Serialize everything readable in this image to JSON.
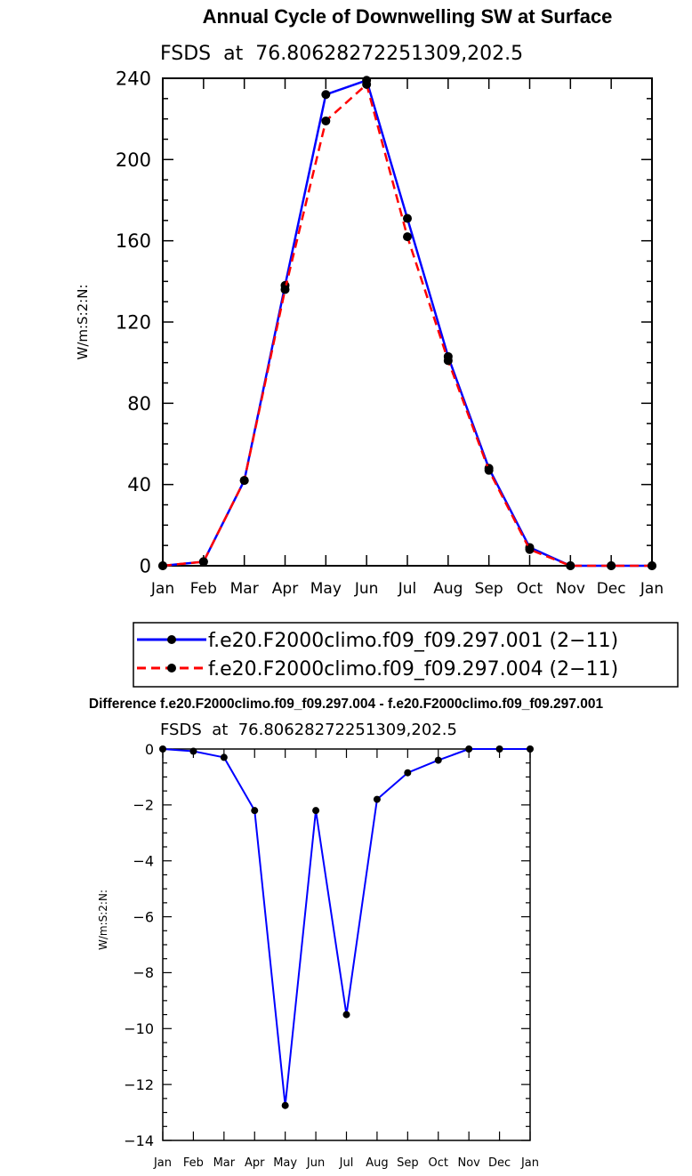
{
  "chart_data": [
    {
      "type": "line",
      "title": "Annual Cycle of Downwelling SW at Surface",
      "subtitle": "FSDS  at  76.80628272251309,202.5",
      "ylabel": "W/m:S:2:N:",
      "xlabel": "",
      "categories": [
        "Jan",
        "Feb",
        "Mar",
        "Apr",
        "May",
        "Jun",
        "Jul",
        "Aug",
        "Sep",
        "Oct",
        "Nov",
        "Dec",
        "Jan"
      ],
      "ylim": [
        0,
        240
      ],
      "yticks": [
        0,
        40,
        80,
        120,
        160,
        200,
        240
      ],
      "grid": false,
      "legend_position": "bottom",
      "series": [
        {
          "name": "f.e20.F2000climo.f09_f09.297.001 (2−11)",
          "color": "#0000ff",
          "dash": "solid",
          "values": [
            0,
            2,
            42,
            138,
            232,
            239,
            171,
            103,
            48,
            9,
            0,
            0,
            0
          ]
        },
        {
          "name": "f.e20.F2000climo.f09_f09.297.004 (2−11)",
          "color": "#ff0000",
          "dash": "dashed",
          "values": [
            0,
            2,
            42,
            136,
            219,
            237,
            162,
            101,
            47,
            8,
            0,
            0,
            0
          ]
        }
      ]
    },
    {
      "type": "line",
      "title": "Difference f.e20.F2000climo.f09_f09.297.004 - f.e20.F2000climo.f09_f09.297.001",
      "subtitle": "FSDS  at  76.80628272251309,202.5",
      "ylabel": "W/m:S:2:N:",
      "xlabel": "",
      "categories": [
        "Jan",
        "Feb",
        "Mar",
        "Apr",
        "May",
        "Jun",
        "Jul",
        "Aug",
        "Sep",
        "Oct",
        "Nov",
        "Dec",
        "Jan"
      ],
      "ylim": [
        -14,
        0
      ],
      "yticks": [
        -14,
        -12,
        -10,
        -8,
        -6,
        -4,
        -2,
        0
      ],
      "grid": false,
      "series": [
        {
          "color": "#0000ff",
          "dash": "solid",
          "values": [
            0,
            -0.08,
            -0.3,
            -2.2,
            -12.75,
            -2.2,
            -9.5,
            -1.8,
            -0.85,
            -0.4,
            0,
            0,
            0
          ]
        }
      ]
    }
  ]
}
